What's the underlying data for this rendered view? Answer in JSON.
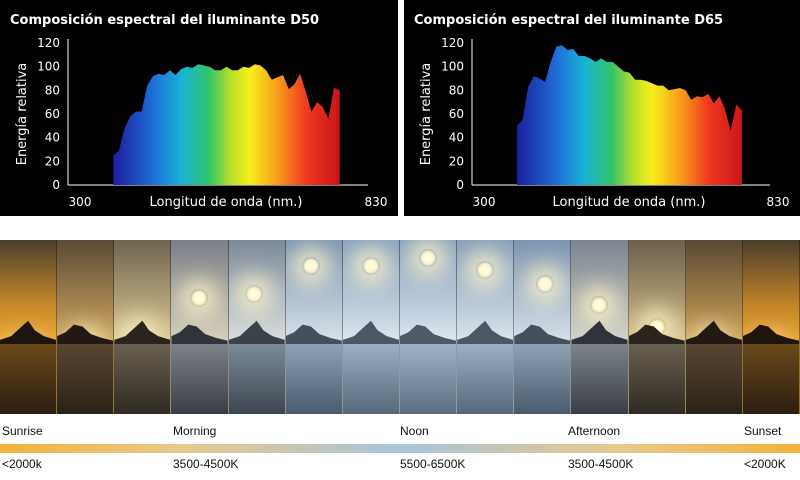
{
  "chart_data": [
    {
      "type": "area",
      "title": "Composición espectral del iluminante D50",
      "xlabel": "Longitud de onda (nm.)",
      "ylabel": "Energía relativa",
      "x_tick_labels": [
        "300",
        "830"
      ],
      "y_ticks": [
        0,
        20,
        40,
        60,
        80,
        100,
        120
      ],
      "xlim": [
        300,
        830
      ],
      "ylim": [
        0,
        120
      ],
      "fill": "visible spectrum gradient (violet to red)",
      "x": [
        380,
        390,
        400,
        410,
        420,
        430,
        440,
        450,
        460,
        470,
        480,
        490,
        500,
        510,
        520,
        530,
        540,
        550,
        560,
        570,
        580,
        590,
        600,
        610,
        620,
        630,
        640,
        650,
        660,
        670,
        680,
        690,
        700,
        710,
        720,
        730,
        740,
        750,
        760,
        770,
        780
      ],
      "y": [
        25,
        29,
        48,
        58,
        62,
        62,
        84,
        92,
        94,
        93,
        97,
        93,
        98,
        100,
        99,
        102,
        101,
        100,
        97,
        97,
        100,
        97,
        97,
        100,
        99,
        102,
        101,
        97,
        89,
        91,
        93,
        81,
        85,
        94,
        79,
        62,
        70,
        66,
        56,
        82,
        80
      ]
    },
    {
      "type": "area",
      "title": "Composición espectral del iluminante D65",
      "xlabel": "Longitud de onda (nm.)",
      "ylabel": "Energía relativa",
      "x_tick_labels": [
        "300",
        "830"
      ],
      "y_ticks": [
        0,
        20,
        40,
        60,
        80,
        100,
        120
      ],
      "xlim": [
        300,
        830
      ],
      "ylim": [
        0,
        120
      ],
      "fill": "visible spectrum gradient (violet to red)",
      "x": [
        380,
        390,
        400,
        410,
        420,
        430,
        440,
        450,
        460,
        470,
        480,
        490,
        500,
        510,
        520,
        530,
        540,
        550,
        560,
        570,
        580,
        590,
        600,
        610,
        620,
        630,
        640,
        650,
        660,
        670,
        680,
        690,
        700,
        710,
        720,
        730,
        740,
        750,
        760,
        770,
        780
      ],
      "y": [
        50,
        55,
        83,
        92,
        90,
        87,
        104,
        117,
        118,
        114,
        115,
        109,
        109,
        107,
        104,
        107,
        104,
        104,
        100,
        96,
        95,
        89,
        89,
        88,
        86,
        84,
        84,
        80,
        81,
        82,
        80,
        72,
        75,
        74,
        77,
        69,
        75,
        64,
        46,
        68,
        63
      ]
    }
  ],
  "time_of_day": {
    "labels": [
      "Sunrise",
      "Morning",
      "Noon",
      "Afternoon",
      "Sunset"
    ],
    "temperatures": [
      "<2000k",
      "3500-4500K",
      "5500-6500K",
      "3500-4500K",
      "<2000K"
    ],
    "gradient_colors": [
      "#f2b23a",
      "#e9c98a",
      "#a9c4dc",
      "#e9c98a",
      "#f2b23a"
    ]
  }
}
